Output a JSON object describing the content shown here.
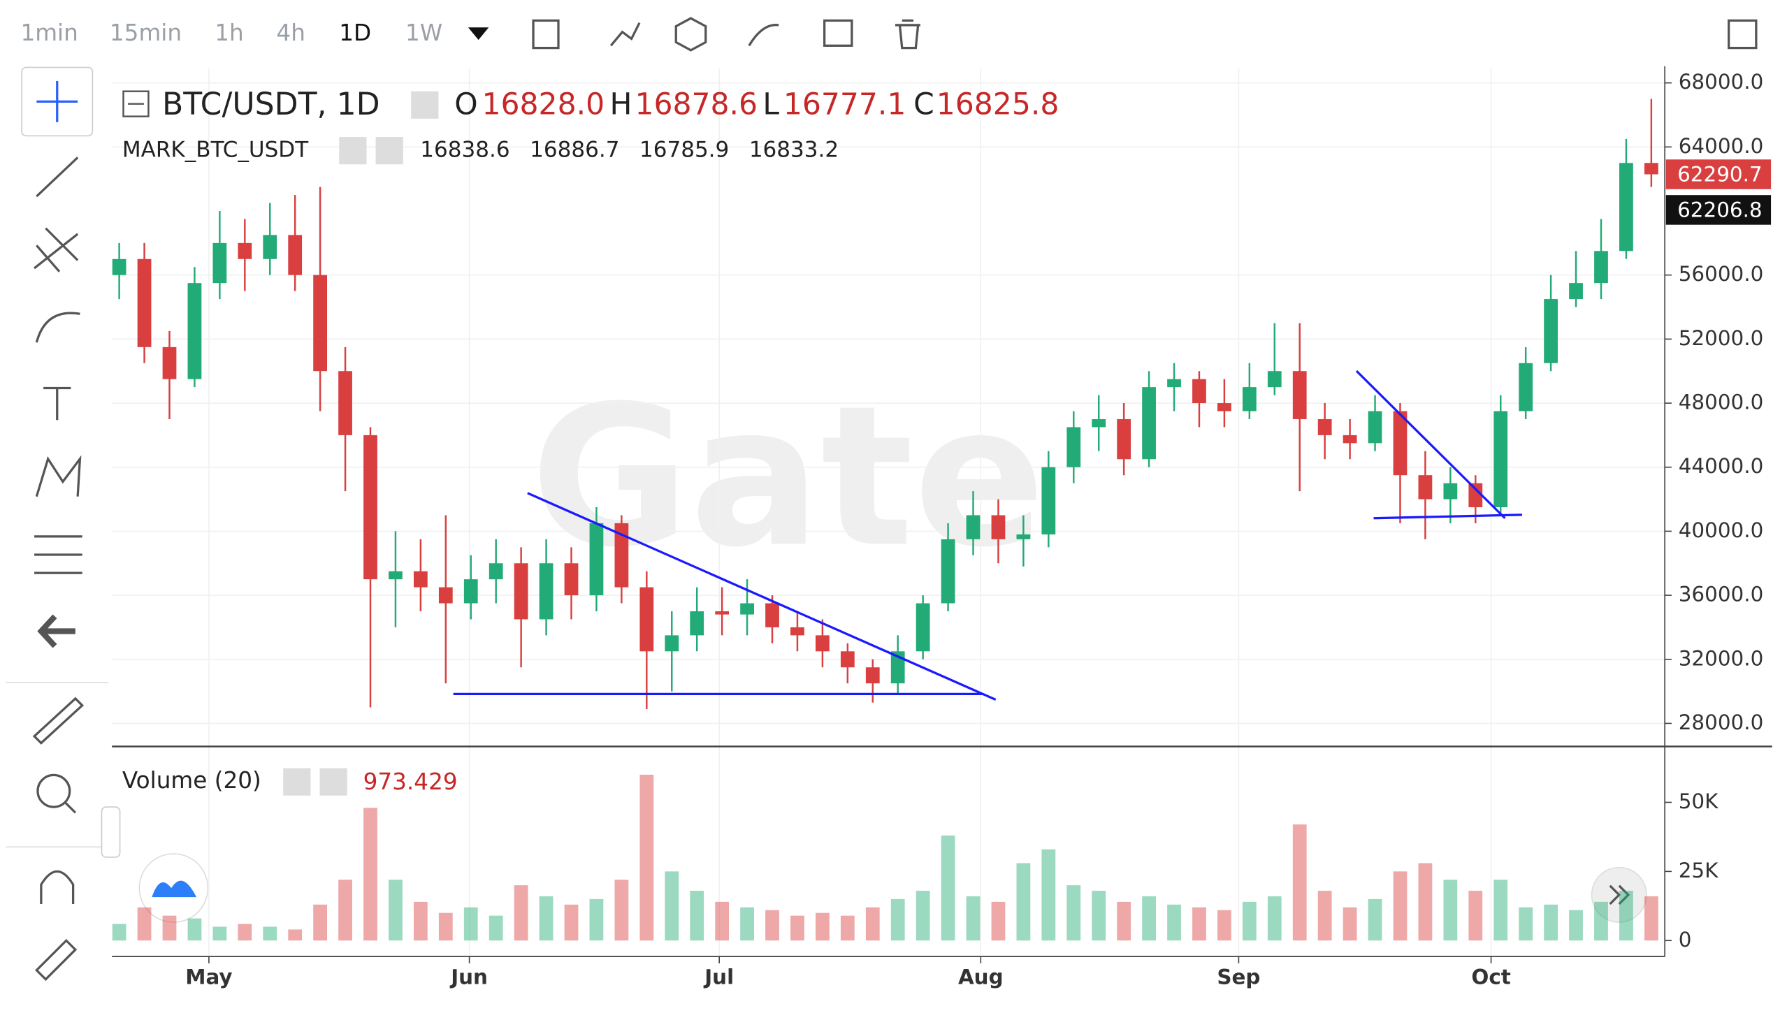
{
  "toolbar": {
    "intervals": [
      "1min",
      "15min",
      "1h",
      "4h",
      "1D",
      "1W"
    ]
  },
  "watermark": "Gate",
  "chart_data": {
    "type": "candlestick",
    "title": "BTC/USDT, 1D",
    "header_ohlc": {
      "labels": [
        "O",
        "H",
        "L",
        "C"
      ],
      "values": [
        16828,
        16878.6,
        16777.1,
        16825.8
      ],
      "value_labels": [
        "16828.0",
        "16878.6",
        "16777.1",
        "16825.8"
      ]
    },
    "mark": {
      "name": "MARK_BTC_USDT",
      "values": [
        16838.6,
        16886.7,
        16785.9,
        16833.2
      ],
      "value_labels": [
        "16838.6",
        "16886.7",
        "16785.9",
        "16833.2"
      ]
    },
    "colors": {
      "up": "#22ab76",
      "down": "#d93f3f"
    },
    "grid": true,
    "open": [
      56000,
      57000,
      51500,
      49500,
      55500,
      58000,
      57000,
      58500,
      56000,
      50000,
      46000,
      37000,
      37500,
      36500,
      35500,
      37000,
      38000,
      34500,
      38000,
      36000,
      40500,
      36500,
      32500,
      33500,
      35000,
      34800,
      35500,
      34000,
      33500,
      32500,
      31500,
      30500,
      32500,
      35500,
      39500,
      41000,
      39500,
      39800,
      44000,
      46500,
      47000,
      44500,
      49000,
      49500,
      48000,
      47500,
      49000,
      50000,
      47000,
      46000,
      45500,
      47500,
      43500,
      42000,
      43000,
      41500,
      47500,
      50500,
      54500,
      55500,
      57500,
      63000
    ],
    "high": [
      58000,
      58000,
      52500,
      56500,
      60000,
      59500,
      60500,
      61000,
      61500,
      51500,
      46500,
      40000,
      39500,
      41000,
      38500,
      39500,
      39000,
      39500,
      39000,
      41500,
      41000,
      37500,
      35000,
      36500,
      36500,
      37000,
      36000,
      35000,
      34500,
      33000,
      32000,
      33500,
      36000,
      40500,
      42500,
      42000,
      41000,
      45000,
      47500,
      48500,
      48000,
      50000,
      50500,
      50000,
      49500,
      50500,
      53000,
      53000,
      48000,
      47000,
      48500,
      48000,
      45000,
      44000,
      43500,
      48500,
      51500,
      56000,
      57500,
      59500,
      64500,
      67000
    ],
    "low": [
      54500,
      50500,
      47000,
      49000,
      54500,
      55000,
      56000,
      55000,
      47500,
      42500,
      29000,
      34000,
      35000,
      30500,
      34500,
      35500,
      31500,
      33500,
      34500,
      35000,
      35500,
      28900,
      30000,
      32500,
      33500,
      33500,
      33000,
      32500,
      31500,
      30500,
      29300,
      29800,
      32000,
      35000,
      38500,
      38000,
      37800,
      39000,
      43000,
      45000,
      43500,
      44000,
      47500,
      46500,
      46500,
      47000,
      48500,
      42500,
      44500,
      44500,
      45000,
      40500,
      39500,
      40500,
      40500,
      41000,
      47000,
      50000,
      54000,
      54500,
      57000,
      61500
    ],
    "close": [
      57000,
      51500,
      49500,
      55500,
      58000,
      57000,
      58500,
      56000,
      50000,
      46000,
      37000,
      37500,
      36500,
      35500,
      37000,
      38000,
      34500,
      38000,
      36000,
      40500,
      36500,
      32500,
      33500,
      35000,
      34800,
      35500,
      34000,
      33500,
      32500,
      31500,
      30500,
      32500,
      35500,
      39500,
      41000,
      39500,
      39800,
      44000,
      46500,
      47000,
      44500,
      49000,
      49500,
      48000,
      47500,
      49000,
      50000,
      47000,
      46000,
      45500,
      47500,
      43500,
      42000,
      43000,
      41500,
      47500,
      50500,
      54500,
      55500,
      57500,
      63000,
      62290.7
    ],
    "volume": [
      6000,
      12000,
      9000,
      8000,
      5000,
      6000,
      5000,
      4000,
      13000,
      22000,
      48000,
      22000,
      14000,
      10000,
      12000,
      9000,
      20000,
      16000,
      13000,
      15000,
      22000,
      60000,
      25000,
      18000,
      14000,
      12000,
      11000,
      9000,
      10000,
      9000,
      12000,
      15000,
      18000,
      38000,
      16000,
      14000,
      28000,
      33000,
      20000,
      18000,
      14000,
      16000,
      13000,
      12000,
      11000,
      14000,
      16000,
      42000,
      18000,
      12000,
      15000,
      25000,
      28000,
      22000,
      18000,
      22000,
      12000,
      13000,
      11000,
      14000,
      18000,
      16000
    ],
    "xlim": [
      -0.2,
      61.4
    ],
    "xticks": [
      {
        "value": 3.57,
        "label": "May"
      },
      {
        "value": 13.94,
        "label": "Jun"
      },
      {
        "value": 23.89,
        "label": "Jul"
      },
      {
        "value": 34.3,
        "label": "Aug"
      },
      {
        "value": 44.57,
        "label": "Sep"
      },
      {
        "value": 54.62,
        "label": "Oct"
      }
    ],
    "ylim": [
      26700,
      68900
    ],
    "yticks": [
      {
        "value": 28000,
        "label": "28000.0"
      },
      {
        "value": 32000,
        "label": "32000.0"
      },
      {
        "value": 36000,
        "label": "36000.0"
      },
      {
        "value": 40000,
        "label": "40000.0"
      },
      {
        "value": 44000,
        "label": "44000.0"
      },
      {
        "value": 48000,
        "label": "48000.0"
      },
      {
        "value": 52000,
        "label": "52000.0"
      },
      {
        "value": 56000,
        "label": "56000.0"
      },
      {
        "value": 64000,
        "label": "64000.0"
      },
      {
        "value": 68000,
        "label": "68000.0"
      }
    ],
    "price_tags": [
      {
        "value": 62290.7,
        "label": "62290.7",
        "color": "#d93f3f"
      },
      {
        "value": 62206.8,
        "label": "62206.8",
        "color": "#111111"
      }
    ],
    "volume_pane": {
      "title": "Volume (20)",
      "value": 973.429,
      "ylim": [
        0,
        69800
      ],
      "yticks": [
        0,
        {
          "value": 25000,
          "label": "25K"
        },
        {
          "value": 50000,
          "label": "50K"
        }
      ]
    }
  }
}
